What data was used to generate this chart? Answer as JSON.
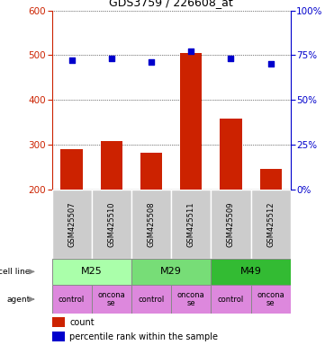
{
  "title": "GDS3759 / 226608_at",
  "samples": [
    "GSM425507",
    "GSM425510",
    "GSM425508",
    "GSM425511",
    "GSM425509",
    "GSM425512"
  ],
  "counts": [
    290,
    308,
    283,
    505,
    358,
    247
  ],
  "percentile_ranks": [
    72,
    73,
    71,
    77,
    73,
    70
  ],
  "ylim_left": [
    200,
    600
  ],
  "ylim_right": [
    0,
    100
  ],
  "yticks_left": [
    200,
    300,
    400,
    500,
    600
  ],
  "yticks_right": [
    0,
    25,
    50,
    75,
    100
  ],
  "cell_lines": [
    {
      "label": "M25",
      "cols": [
        0,
        1
      ],
      "color": "#aaffaa"
    },
    {
      "label": "M29",
      "cols": [
        2,
        3
      ],
      "color": "#77dd77"
    },
    {
      "label": "M49",
      "cols": [
        4,
        5
      ],
      "color": "#33bb33"
    }
  ],
  "agents": [
    {
      "label": "control",
      "col": 0
    },
    {
      "label": "onconase",
      "col": 1
    },
    {
      "label": "control",
      "col": 2
    },
    {
      "label": "onconase",
      "col": 3
    },
    {
      "label": "control",
      "col": 4
    },
    {
      "label": "onconase",
      "col": 5
    }
  ],
  "agent_color": "#dd88dd",
  "sample_bg_color": "#cccccc",
  "bar_color": "#cc2200",
  "dot_color": "#0000cc",
  "left_axis_color": "#cc2200",
  "right_axis_color": "#0000cc"
}
